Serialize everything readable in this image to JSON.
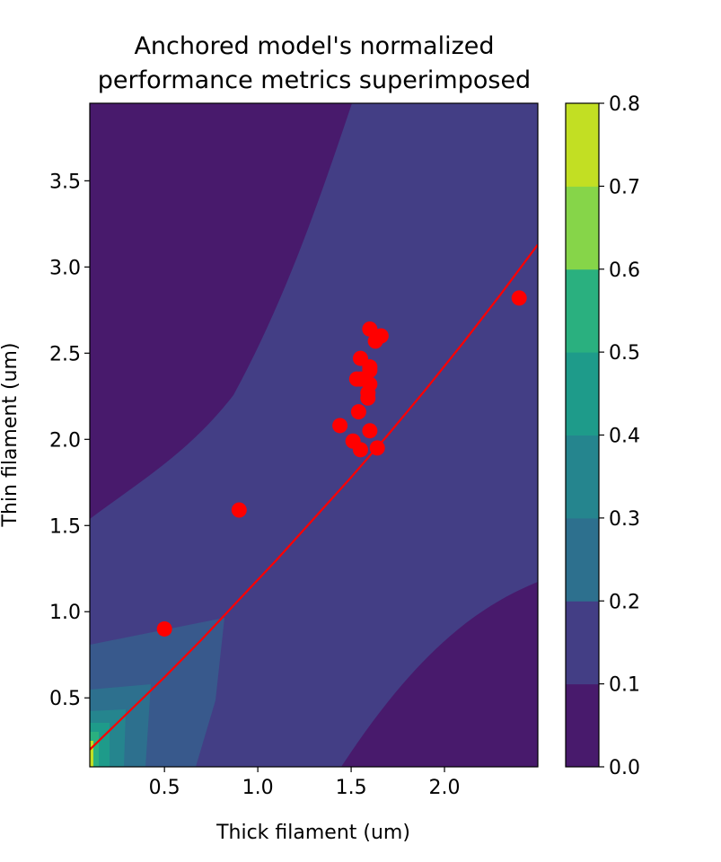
{
  "chart_data": {
    "type": "contour",
    "title": "Anchored model's normalized\nperformance metrics superimposed",
    "title_lines": [
      "Anchored model's normalized",
      "performance metrics superimposed"
    ],
    "xlabel": "Thick filament (um)",
    "ylabel": "Thin filament (um)",
    "xlim": [
      0.1,
      2.5
    ],
    "ylim": [
      0.1,
      3.95
    ],
    "x_ticks": [
      0.5,
      1.0,
      1.5,
      2.0
    ],
    "x_tick_labels": [
      "0.5",
      "1.0",
      "1.5",
      "2.0"
    ],
    "y_ticks": [
      0.5,
      1.0,
      1.5,
      2.0,
      2.5,
      3.0,
      3.5
    ],
    "y_tick_labels": [
      "0.5",
      "1.0",
      "1.5",
      "2.0",
      "2.5",
      "3.0",
      "3.5"
    ],
    "colorbar": {
      "levels": [
        0.0,
        0.1,
        0.2,
        0.3,
        0.4,
        0.5,
        0.6,
        0.7,
        0.8
      ],
      "tick_labels": [
        "0.0",
        "0.1",
        "0.2",
        "0.3",
        "0.4",
        "0.5",
        "0.6",
        "0.7",
        "0.8"
      ],
      "colors": [
        "#481a6c",
        "#433e85",
        "#38598c",
        "#2d708e",
        "#25858e",
        "#1e9b8a",
        "#2ab07f",
        "#52c569",
        "#86d549",
        "#c2df23"
      ]
    },
    "contour_colors": {
      "band_0_1": "#481a6c",
      "band_1_2": "#433e85",
      "band_2_3": "#38598c",
      "band_3_4": "#2d708e",
      "band_4_5": "#25858e",
      "band_5_6": "#1e9b8a",
      "band_6_7": "#2ab07f",
      "band_7_8": "#c2df23"
    },
    "fit_curve": {
      "color": "#ff0000",
      "x": [
        0.1,
        0.3,
        0.5,
        0.7,
        0.9,
        1.1,
        1.3,
        1.5,
        1.7,
        1.9,
        2.1,
        2.3,
        2.5
      ],
      "y": [
        0.2,
        0.41,
        0.62,
        0.84,
        1.07,
        1.3,
        1.54,
        1.78,
        2.03,
        2.29,
        2.56,
        2.84,
        3.13
      ]
    },
    "points": {
      "color": "#ff0000",
      "x": [
        0.5,
        0.9,
        1.44,
        1.51,
        1.55,
        1.6,
        1.64,
        1.54,
        1.55,
        1.59,
        1.59,
        1.6,
        1.6,
        1.53,
        1.55,
        1.6,
        1.63,
        1.66,
        1.6,
        2.4
      ],
      "y": [
        0.9,
        1.59,
        2.08,
        1.99,
        1.94,
        2.05,
        1.95,
        2.16,
        2.47,
        2.24,
        2.27,
        2.32,
        2.4,
        2.35,
        2.35,
        2.64,
        2.57,
        2.6,
        2.42,
        2.82
      ]
    }
  }
}
